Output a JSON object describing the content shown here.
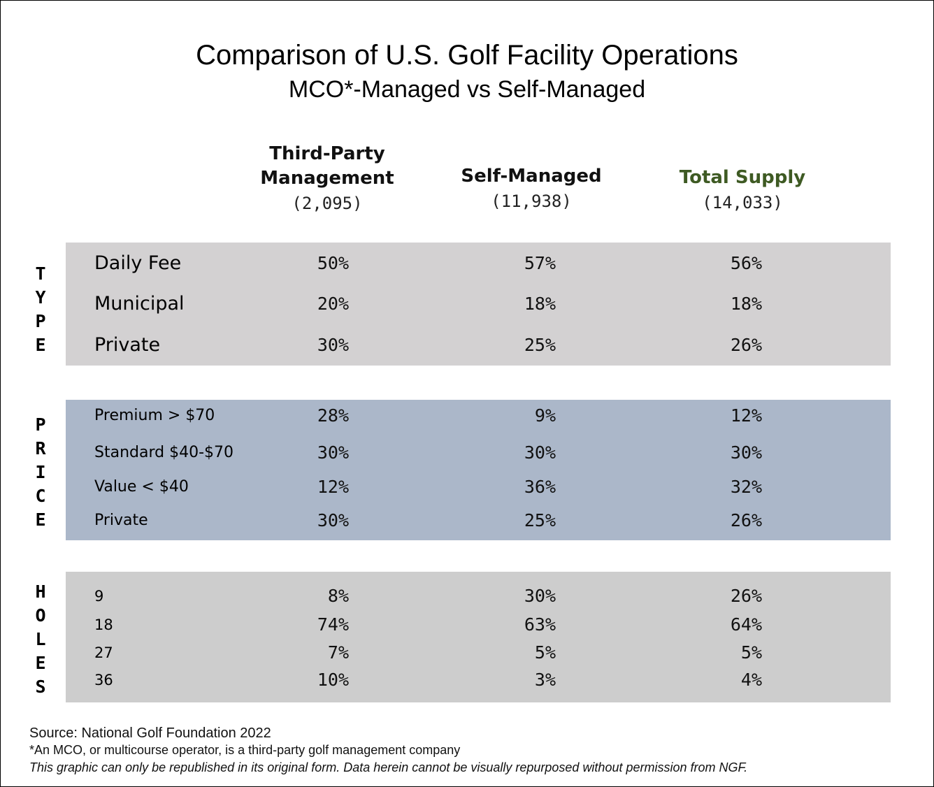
{
  "colors": {
    "type_band": "#d3d1d2",
    "price_band": "#abb7c9",
    "holes_band": "#cdcdcd",
    "total_supply_header": "#3e5a23",
    "text": "#111111"
  },
  "chart_data": {
    "type": "table",
    "title": "Comparison of U.S. Golf Facility Operations",
    "subtitle": "MCO*-Managed vs Self-Managed",
    "columns": [
      {
        "name_line1": "Third-Party",
        "name_line2": "Management",
        "count": "(2,095)"
      },
      {
        "name_line1": "",
        "name_line2": "Self-Managed",
        "count": "(11,938)"
      },
      {
        "name_line1": "",
        "name_line2": "Total Supply",
        "count": "(14,033)"
      }
    ],
    "sections": [
      {
        "label": "TYPE",
        "rows": [
          {
            "label": "Daily Fee",
            "values": [
              "50%",
              "57%",
              "56%"
            ]
          },
          {
            "label": "Municipal",
            "values": [
              "20%",
              "18%",
              "18%"
            ]
          },
          {
            "label": "Private",
            "values": [
              "30%",
              "25%",
              "26%"
            ]
          }
        ]
      },
      {
        "label": "PRICE",
        "rows": [
          {
            "label": "Premium > $70",
            "values": [
              "28%",
              "9%",
              "12%"
            ]
          },
          {
            "label": "Standard $40-$70",
            "values": [
              "30%",
              "30%",
              "30%"
            ]
          },
          {
            "label": "Value < $40",
            "values": [
              "12%",
              "36%",
              "32%"
            ]
          },
          {
            "label": "Private",
            "values": [
              "30%",
              "25%",
              "26%"
            ]
          }
        ]
      },
      {
        "label": "HOLES",
        "rows": [
          {
            "label": "9",
            "values": [
              "8%",
              "30%",
              "26%"
            ]
          },
          {
            "label": "18",
            "values": [
              "74%",
              "63%",
              "64%"
            ]
          },
          {
            "label": "27",
            "values": [
              "7%",
              "5%",
              "5%"
            ]
          },
          {
            "label": "36",
            "values": [
              "10%",
              "3%",
              "4%"
            ]
          }
        ]
      }
    ]
  },
  "footer": {
    "source": "Source: National Golf Foundation 2022",
    "note": "*An MCO, or multicourse operator, is a third-party golf management company",
    "rights": "This graphic can only be republished in its original form. Data herein cannot be visually repurposed without permission from NGF."
  }
}
